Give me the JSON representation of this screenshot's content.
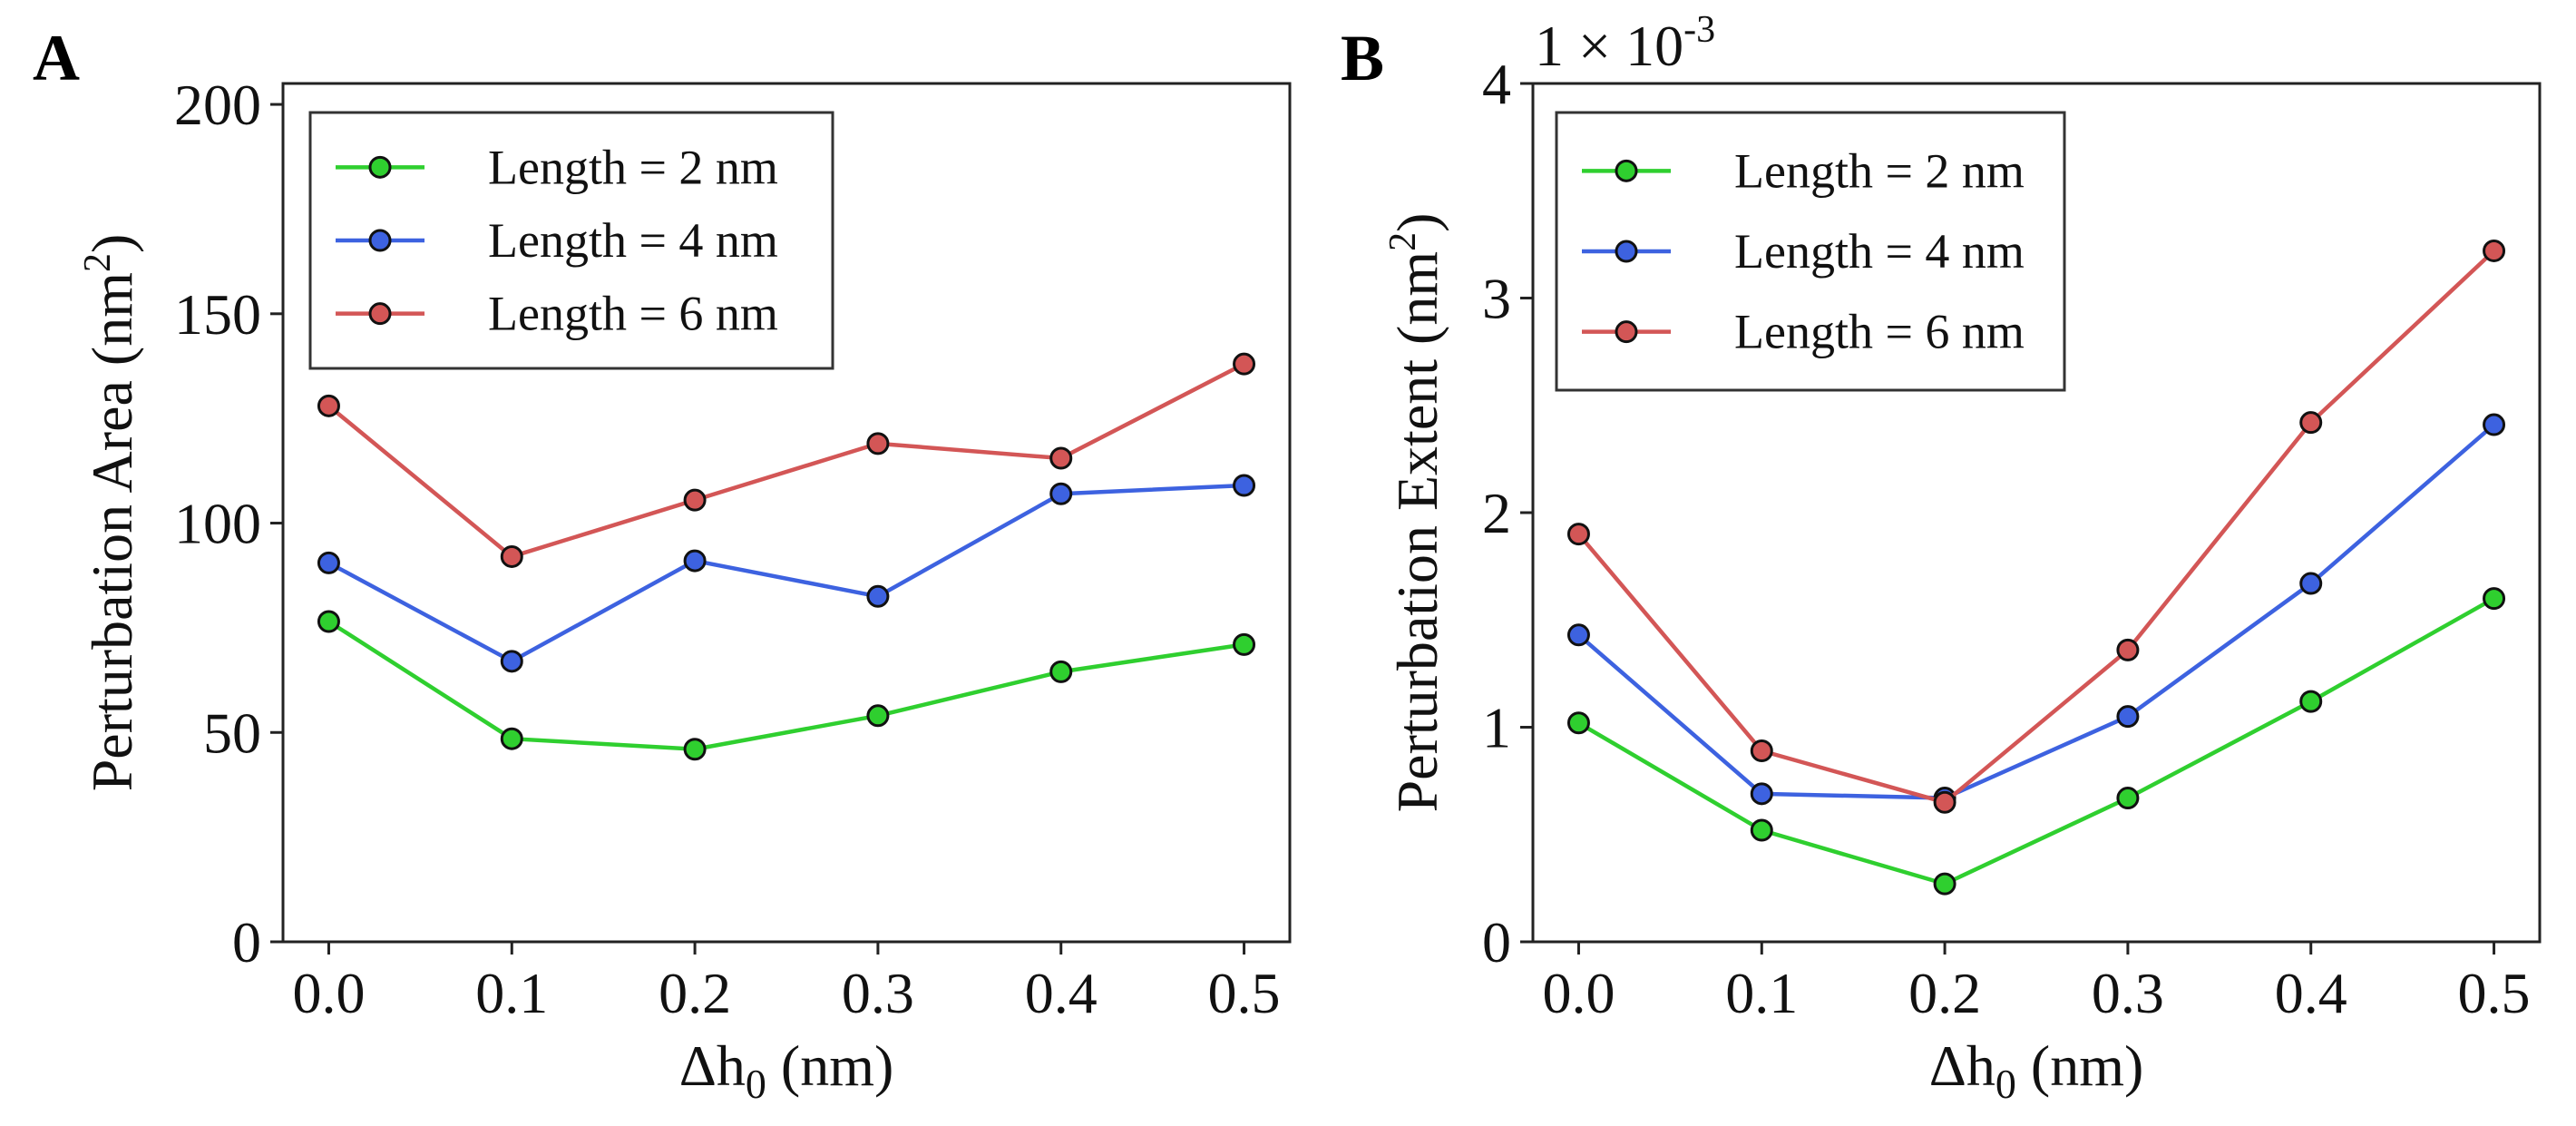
{
  "chart_data": [
    {
      "panel": "A",
      "type": "line",
      "x": [
        0.0,
        0.1,
        0.2,
        0.3,
        0.4,
        0.5
      ],
      "x_tick_labels": [
        "0.0",
        "0.1",
        "0.2",
        "0.3",
        "0.4",
        "0.5"
      ],
      "xlim": [
        -0.025,
        0.525
      ],
      "ylim": [
        0,
        205
      ],
      "y_ticks": [
        0,
        50,
        100,
        150,
        200
      ],
      "y_tick_labels": [
        "0",
        "50",
        "100",
        "150",
        "200"
      ],
      "xlabel_main": "Δh",
      "xlabel_sub": "0",
      "xlabel_unit": " (nm)",
      "ylabel_main": "Perturbation Area (nm",
      "ylabel_sup": "2",
      "ylabel_close": ")",
      "scale_prefix": "",
      "scale_exp": "",
      "legend_position": "top-left",
      "series": [
        {
          "name": "Length = 2 nm",
          "color": "#2fcf2f",
          "values": [
            76.5,
            48.5,
            46,
            54,
            64.5,
            71
          ]
        },
        {
          "name": "Length = 4 nm",
          "color": "#3d62e0",
          "values": [
            90.5,
            67,
            91,
            82.5,
            107,
            109
          ]
        },
        {
          "name": "Length = 6 nm",
          "color": "#d35656",
          "values": [
            128,
            92,
            105.5,
            119,
            115.5,
            138
          ]
        }
      ]
    },
    {
      "panel": "B",
      "type": "line",
      "x": [
        0.0,
        0.1,
        0.2,
        0.3,
        0.4,
        0.5
      ],
      "x_tick_labels": [
        "0.0",
        "0.1",
        "0.2",
        "0.3",
        "0.4",
        "0.5"
      ],
      "xlim": [
        -0.025,
        0.525
      ],
      "ylim": [
        0,
        4
      ],
      "y_ticks": [
        0,
        1,
        2,
        3,
        4
      ],
      "y_tick_labels": [
        "0",
        "1",
        "2",
        "3",
        "4"
      ],
      "xlabel_main": "Δh",
      "xlabel_sub": "0",
      "xlabel_unit": " (nm)",
      "ylabel_main": "Perturbation Extent (nm",
      "ylabel_sup": "2",
      "ylabel_close": ")",
      "scale_prefix": "1 × 10",
      "scale_exp": "-3",
      "legend_position": "top-left",
      "series": [
        {
          "name": "Length = 2 nm",
          "color": "#2fcf2f",
          "values": [
            1.02,
            0.52,
            0.27,
            0.67,
            1.12,
            1.6
          ]
        },
        {
          "name": "Length = 4 nm",
          "color": "#3d62e0",
          "values": [
            1.43,
            0.69,
            0.67,
            1.05,
            1.67,
            2.41
          ]
        },
        {
          "name": "Length = 6 nm",
          "color": "#d35656",
          "values": [
            1.9,
            0.89,
            0.65,
            1.36,
            2.42,
            3.22
          ]
        }
      ]
    }
  ]
}
